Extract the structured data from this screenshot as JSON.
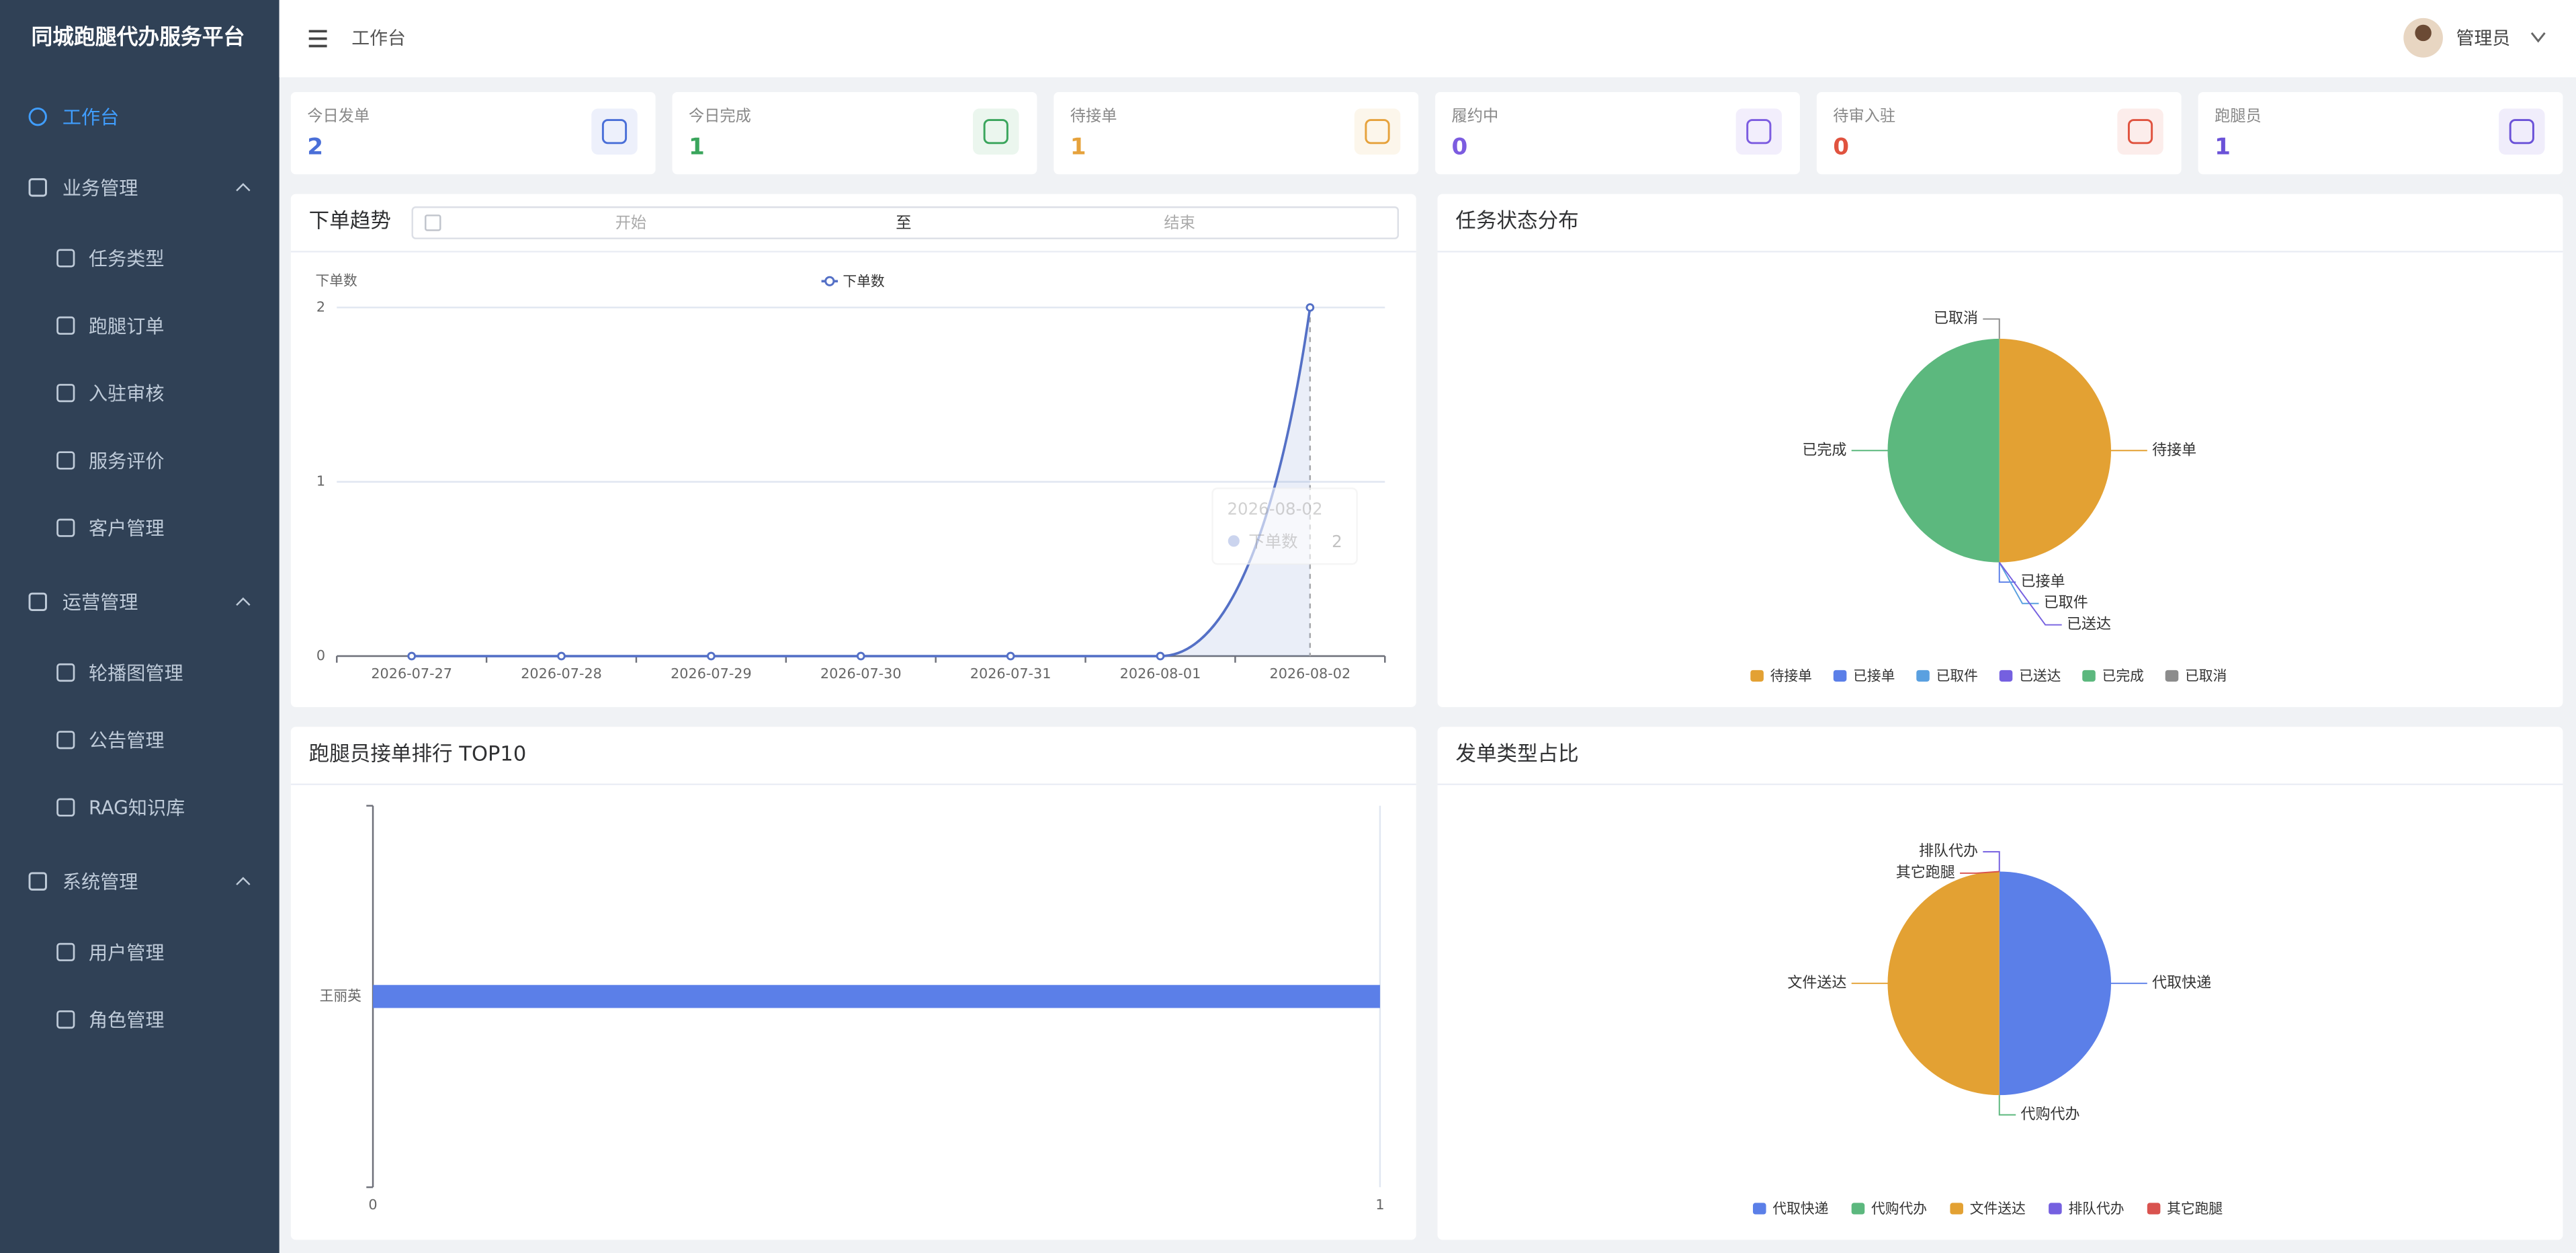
{
  "sidebar": {
    "brand": "同城跑腿代办服务平台",
    "menu": [
      {
        "label": "工作台",
        "active": true
      },
      {
        "label": "业务管理",
        "children": [
          "任务类型",
          "跑腿订单",
          "入驻审核",
          "服务评价",
          "客户管理"
        ]
      },
      {
        "label": "运营管理",
        "children": [
          "轮播图管理",
          "公告管理",
          "RAG知识库"
        ]
      },
      {
        "label": "系统管理",
        "children": [
          "用户管理",
          "角色管理"
        ]
      }
    ]
  },
  "header": {
    "breadcrumb": "工作台",
    "user": "管理员"
  },
  "stats": [
    {
      "label": "今日发单",
      "value": 2,
      "color": "#4a6fd8"
    },
    {
      "label": "今日完成",
      "value": 1,
      "color": "#3aa55c"
    },
    {
      "label": "待接单",
      "value": 1,
      "color": "#e6a23c"
    },
    {
      "label": "履约中",
      "value": 0,
      "color": "#7c5ce0"
    },
    {
      "label": "待审入驻",
      "value": 0,
      "color": "#e0533f"
    },
    {
      "label": "跑腿员",
      "value": 1,
      "color": "#6b52d8"
    }
  ],
  "chart_data": [
    {
      "type": "line",
      "title": "下单趋势",
      "date_range": {
        "start": "开始",
        "separator": "至",
        "end": "结束"
      },
      "y_axis_label": "下单数",
      "categories": [
        "2026-07-27",
        "2026-07-28",
        "2026-07-29",
        "2026-07-30",
        "2026-07-31",
        "2026-08-01",
        "2026-08-02"
      ],
      "series": [
        {
          "name": "下单数",
          "color": "#5470c6",
          "values": [
            0,
            0,
            0,
            0,
            0,
            0,
            2
          ]
        }
      ],
      "ylim": [
        0,
        2
      ],
      "yticks": [
        0,
        1,
        2
      ],
      "grid": true
    },
    {
      "type": "pie",
      "title": "任务状态分布",
      "categories": [
        "待接单",
        "已接单",
        "已取件",
        "已送达",
        "已完成",
        "已取消"
      ],
      "values": [
        1,
        0,
        0,
        0,
        1,
        0
      ],
      "colors": [
        "#e3a133",
        "#5b7fe8",
        "#5aa0e0",
        "#7560e0",
        "#5cb87e",
        "#8c8c8c"
      ]
    },
    {
      "type": "bar",
      "title": "跑腿员接单排行 TOP10",
      "orientation": "horizontal",
      "categories": [
        "王丽英"
      ],
      "values": [
        1
      ],
      "color": "#5b7fe8",
      "xlim": [
        0,
        1
      ],
      "xticks": [
        0,
        1
      ]
    },
    {
      "type": "pie",
      "title": "发单类型占比",
      "categories": [
        "代取快递",
        "代购代办",
        "文件送达",
        "排队代办",
        "其它跑腿"
      ],
      "values": [
        1,
        0,
        1,
        0,
        0
      ],
      "colors": [
        "#5b7fe8",
        "#5cb87e",
        "#e3a133",
        "#7560e0",
        "#d9534f"
      ]
    }
  ]
}
